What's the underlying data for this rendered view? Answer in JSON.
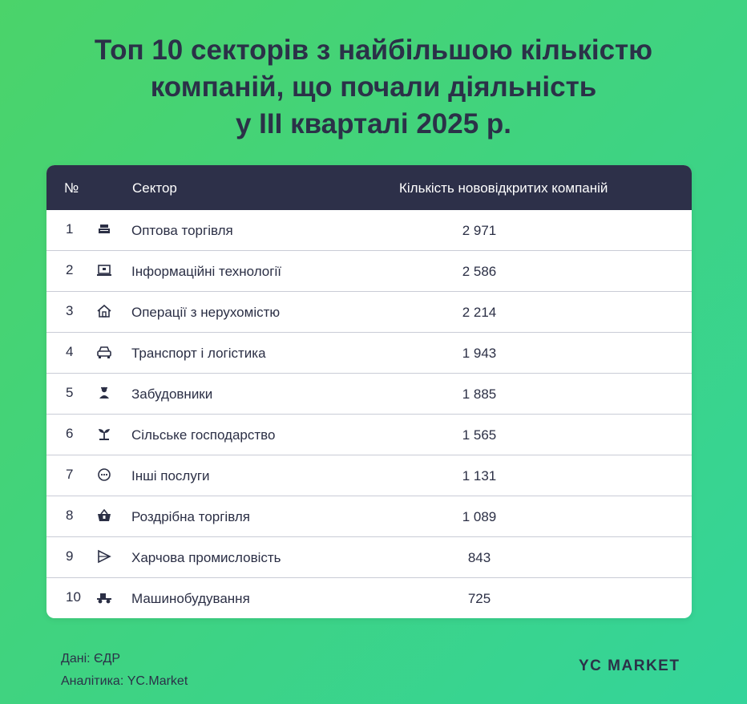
{
  "title_lines": [
    "Топ 10 секторів з найбільшою кількістю",
    "компаній, що почали діяльність",
    "у III кварталі 2025 р."
  ],
  "table": {
    "headers": {
      "num": "№",
      "sector": "Сектор",
      "count": "Кількість нововідкритих компаній"
    }
  },
  "chart_data": {
    "type": "table",
    "title": "Топ 10 секторів з найбільшою кількістю компаній, що почали діяльність у III кварталі 2025 р.",
    "columns": [
      "№",
      "Сектор",
      "Кількість нововідкритих компаній"
    ],
    "rows": [
      {
        "num": "1",
        "sector": "Оптова торгівля",
        "count": "2 971",
        "value": 2971,
        "icon": "wholesale-icon"
      },
      {
        "num": "2",
        "sector": "Інформаційні технології",
        "count": "2 586",
        "value": 2586,
        "icon": "laptop-icon"
      },
      {
        "num": "3",
        "sector": "Операції з нерухомістю",
        "count": "2 214",
        "value": 2214,
        "icon": "house-icon"
      },
      {
        "num": "4",
        "sector": "Транспорт і логістика",
        "count": "1 943",
        "value": 1943,
        "icon": "car-icon"
      },
      {
        "num": "5",
        "sector": "Забудовники",
        "count": "1 885",
        "value": 1885,
        "icon": "builder-icon"
      },
      {
        "num": "6",
        "sector": "Сільське господарство",
        "count": "1 565",
        "value": 1565,
        "icon": "sprout-icon"
      },
      {
        "num": "7",
        "sector": "Інші послуги",
        "count": "1 131",
        "value": 1131,
        "icon": "more-icon"
      },
      {
        "num": "8",
        "sector": "Роздрібна торгівля",
        "count": "1 089",
        "value": 1089,
        "icon": "basket-icon"
      },
      {
        "num": "9",
        "sector": "Харчова промисловість",
        "count": "843",
        "value": 843,
        "icon": "food-icon"
      },
      {
        "num": "10",
        "sector": "Машинобудування",
        "count": "725",
        "value": 725,
        "icon": "tractor-icon"
      }
    ]
  },
  "footer": {
    "source": "Дані: ЄДР",
    "analytics": "Аналітика: YC.Market",
    "brand": "YC MARKET"
  },
  "colors": {
    "header_bg": "#2d3049",
    "text": "#2b3148",
    "background_start": "#4bd36a",
    "background_end": "#34d49a"
  }
}
